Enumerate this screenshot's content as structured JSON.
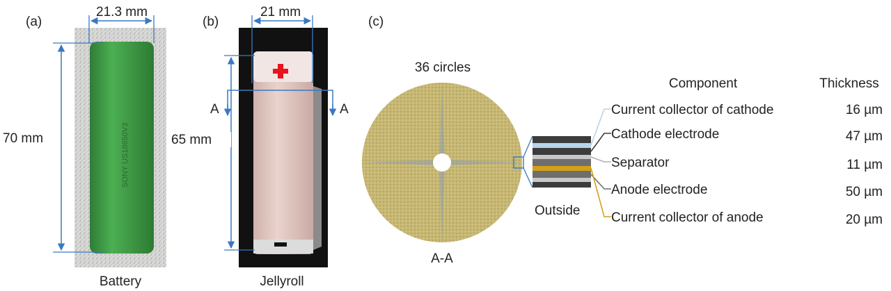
{
  "panels": {
    "a": {
      "tag": "(a)",
      "width_label": "21.3 mm",
      "height_label": "70 mm",
      "caption": "Battery",
      "print_text": "SONY US18650V3"
    },
    "b": {
      "tag": "(b)",
      "width_label": "21 mm",
      "height_label": "65 mm",
      "caption": "Jellyroll",
      "section_left": "A",
      "section_right": "A"
    },
    "c": {
      "tag": "(c)",
      "circles_label": "36 circles",
      "section_label": "A-A",
      "outside_label": "Outside"
    }
  },
  "table": {
    "header_component": "Component",
    "header_thickness": "Thickness",
    "rows": [
      {
        "component": "Current collector of cathode",
        "thickness": "16 µm",
        "color": "#b8d4ea"
      },
      {
        "component": "Cathode electrode",
        "thickness": "47 µm",
        "color": "#3c3c3c"
      },
      {
        "component": "Separator",
        "thickness": "11 µm",
        "color": "#c8c8c8"
      },
      {
        "component": "Anode electrode",
        "thickness": "50 µm",
        "color": "#6e6e6e"
      },
      {
        "component": "Current collector of anode",
        "thickness": "20 µm",
        "color": "#d4a017"
      }
    ]
  },
  "colors": {
    "dimension_line": "#3a78c2",
    "battery": "#3f9a45",
    "jellyroll": "#e6ccc6",
    "cross_section": "#c7b874",
    "plus_sign": "#e8141d"
  }
}
